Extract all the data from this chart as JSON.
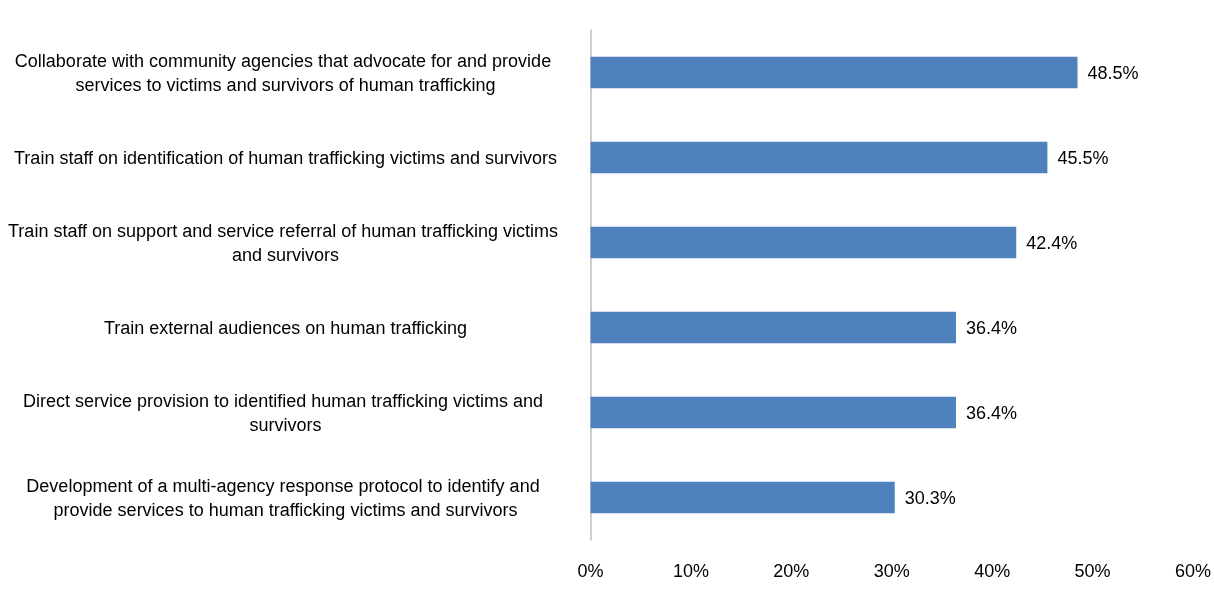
{
  "chart_data": {
    "type": "bar",
    "orientation": "horizontal",
    "categories": [
      "Collaborate with community agencies that advocate for and provide services to victims and survivors of human trafficking",
      "Train staff on identification of human trafficking victims and survivors",
      "Train staff on support and service referral of human trafficking victims and survivors",
      "Train external audiences on human trafficking",
      "Direct service provision to identified human trafficking victims and survivors",
      "Development of a multi-agency response protocol to identify and provide services to human trafficking victims and survivors"
    ],
    "values": [
      48.5,
      45.5,
      42.4,
      36.4,
      36.4,
      30.3
    ],
    "value_labels": [
      "48.5%",
      "45.5%",
      "42.4%",
      "36.4%",
      "36.4%",
      "30.3%"
    ],
    "color": "#4f81bd",
    "xlim": [
      0,
      60
    ],
    "xticks": [
      {
        "value": 0,
        "label": "0%"
      },
      {
        "value": 10,
        "label": "10%"
      },
      {
        "value": 20,
        "label": "20%"
      },
      {
        "value": 30,
        "label": "30%"
      },
      {
        "value": 40,
        "label": "40%"
      },
      {
        "value": 50,
        "label": "50%"
      },
      {
        "value": 60,
        "label": "60%"
      }
    ],
    "grid": false
  }
}
